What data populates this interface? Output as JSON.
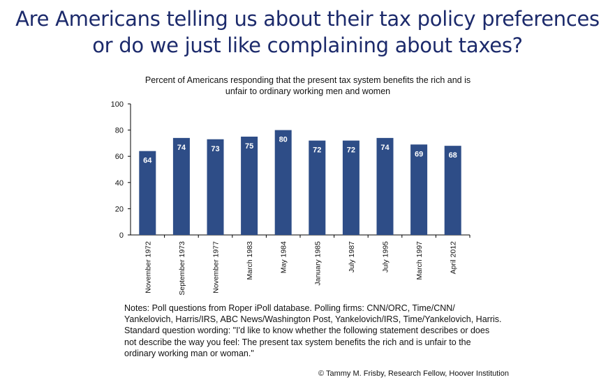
{
  "slide": {
    "title_line1": "Are Americans telling us about their tax policy preferences",
    "title_line2": "or do we just like complaining about taxes?",
    "notes_line1": "Notes: Poll questions from Roper iPoll database. Polling firms: CNN/ORC, Time/CNN/",
    "notes_line2": "Yankelovich, Harris/IRS, ABC News/Washington Post, Yankelovich/IRS, Time/Yankelovich, Harris.",
    "notes_line3": "Standard question wording: \"I'd like to know whether the following statement describes or does",
    "notes_line4": "not describe the way you feel: The present tax system benefits the rich and is unfair to the",
    "notes_line5": "ordinary working man or woman.\"",
    "copyright": "© Tammy M. Frisby, Research Fellow, Hoover Institution"
  },
  "chart_data": {
    "type": "bar",
    "title_line1": "Percent of Americans responding that the present tax system benefits the rich and is",
    "title_line2": "unfair to ordinary working men and women",
    "categories": [
      "November 1972",
      "September 1973",
      "November 1977",
      "March 1983",
      "May 1984",
      "January 1985",
      "July 1987",
      "July 1995",
      "March 1997",
      "April 2012"
    ],
    "values": [
      64,
      74,
      73,
      75,
      80,
      72,
      72,
      74,
      69,
      68
    ],
    "data_labels": [
      "64",
      "74",
      "73",
      "75",
      "80",
      "72",
      "72",
      "74",
      "69",
      "68"
    ],
    "yticks": [
      "0",
      "20",
      "40",
      "60",
      "80",
      "100"
    ],
    "ylim": [
      0,
      100
    ],
    "grid": false,
    "bar_color": "#2e4d87",
    "label_color": "#ffffff"
  }
}
